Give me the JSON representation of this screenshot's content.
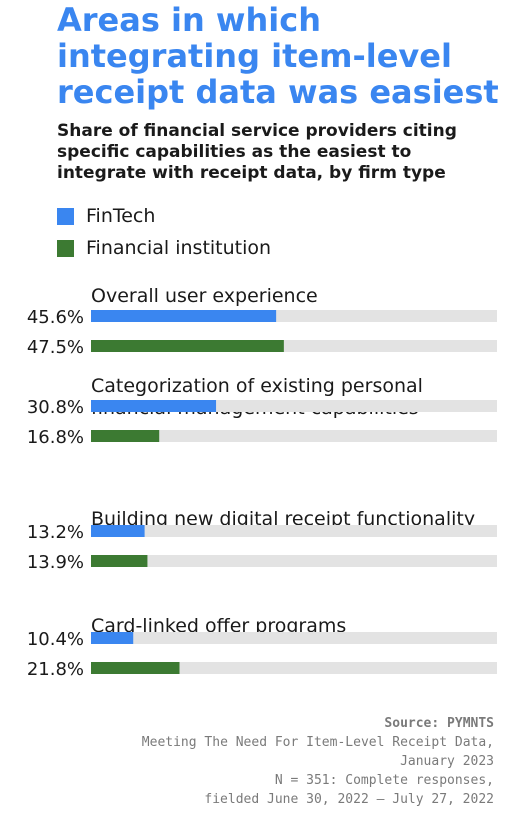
{
  "title": "Areas in which integrating item-level receipt data was easiest",
  "subtitle": "Share of financial service providers citing specific capabilities as the easiest to integrate with receipt data, by firm type",
  "colors": {
    "title": "#3a86f0",
    "fintech": "#3a86f0",
    "fi": "#3c7a32",
    "track": "#e3e3e3"
  },
  "source": {
    "heading": "Source: PYMNTS",
    "lines": [
      "Meeting The Need For Item-Level Receipt Data,",
      "January 2023",
      "N = 351: Complete responses,",
      "fielded June 30, 2022 – July 27, 2022"
    ]
  },
  "chart_data": {
    "type": "bar",
    "orientation": "horizontal",
    "xlim": [
      0,
      100
    ],
    "value_suffix": "%",
    "categories": [
      [
        "Overall user experience"
      ],
      [
        "Categorization of existing personal",
        "financial management capabilities"
      ],
      [
        "Building new digital receipt functionality"
      ],
      [
        "Card-linked offer programs"
      ]
    ],
    "series": [
      {
        "name": "FinTech",
        "color": "#3a86f0",
        "values": [
          45.6,
          30.8,
          13.2,
          10.4
        ]
      },
      {
        "name": "Financial institution",
        "color": "#3c7a32",
        "values": [
          47.5,
          16.8,
          13.9,
          21.8
        ]
      }
    ],
    "legend": "top-left",
    "grid": false
  }
}
